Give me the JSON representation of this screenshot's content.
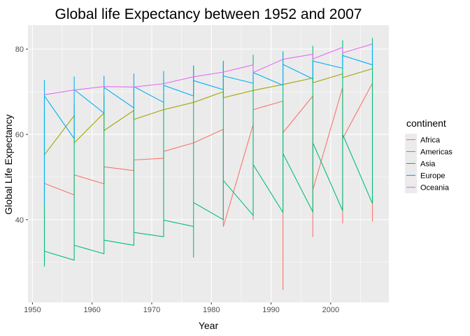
{
  "chart_data": {
    "type": "line",
    "title": "Global life Expectancy between 1952 and 2007",
    "xlabel": "Year",
    "ylabel": "Global Life Expectancy",
    "xlim": [
      1949.25,
      2009.75
    ],
    "ylim": [
      20.6,
      85.6
    ],
    "x_ticks": [
      1950,
      1960,
      1970,
      1980,
      1990,
      2000
    ],
    "y_ticks": [
      40,
      60,
      80
    ],
    "grid": true,
    "legend": {
      "title": "continent",
      "position": "right"
    },
    "series": [
      {
        "name": "Africa",
        "color": "#F8766D",
        "points": [
          [
            1952,
            48.5
          ],
          [
            1952,
            43.5
          ],
          [
            1952,
            38.0
          ],
          [
            1952,
            48.5
          ],
          [
            1957,
            45.8
          ],
          [
            1957,
            50.5
          ],
          [
            1962,
            48.4
          ],
          [
            1962,
            52.4
          ],
          [
            1967,
            51.5
          ],
          [
            1967,
            54.0
          ],
          [
            1972,
            54.4
          ],
          [
            1972,
            56.0
          ],
          [
            1977,
            58.0
          ],
          [
            1982,
            61.2
          ],
          [
            1982,
            38.4
          ],
          [
            1987,
            62.3
          ],
          [
            1987,
            40.0
          ],
          [
            1987,
            65.8
          ],
          [
            1992,
            67.8
          ],
          [
            1992,
            23.6
          ],
          [
            1992,
            60.4
          ],
          [
            1997,
            69.0
          ],
          [
            1997,
            36.0
          ],
          [
            1997,
            47.0
          ],
          [
            2002,
            71.0
          ],
          [
            2002,
            39.2
          ],
          [
            2002,
            59.0
          ],
          [
            2007,
            72.0
          ],
          [
            2007,
            39.6
          ]
        ]
      },
      {
        "name": "Americas",
        "color": "#A3A500",
        "points": [
          [
            1952,
            55.2
          ],
          [
            1952,
            68.0
          ],
          [
            1952,
            55.2
          ],
          [
            1957,
            64.4
          ],
          [
            1957,
            58.0
          ],
          [
            1962,
            65.0
          ],
          [
            1962,
            60.9
          ],
          [
            1967,
            65.6
          ],
          [
            1967,
            63.5
          ],
          [
            1972,
            65.8
          ],
          [
            1977,
            67.5
          ],
          [
            1982,
            70.0
          ],
          [
            1982,
            68.6
          ],
          [
            1987,
            70.3
          ],
          [
            1992,
            71.7
          ],
          [
            1997,
            73.2
          ],
          [
            1997,
            72.1
          ],
          [
            2002,
            74.2
          ],
          [
            2002,
            73.3
          ],
          [
            2007,
            75.4
          ]
        ]
      },
      {
        "name": "Asia",
        "color": "#00BF7D",
        "points": [
          [
            1952,
            29.0
          ],
          [
            1952,
            65.0
          ],
          [
            1952,
            32.6
          ],
          [
            1957,
            30.5
          ],
          [
            1957,
            67.0
          ],
          [
            1957,
            34.0
          ],
          [
            1962,
            32.0
          ],
          [
            1962,
            69.0
          ],
          [
            1962,
            35.2
          ],
          [
            1967,
            34.0
          ],
          [
            1967,
            71.0
          ],
          [
            1967,
            37.0
          ],
          [
            1972,
            36.0
          ],
          [
            1972,
            73.0
          ],
          [
            1972,
            39.9
          ],
          [
            1977,
            38.4
          ],
          [
            1977,
            31.2
          ],
          [
            1977,
            76.0
          ],
          [
            1977,
            44.0
          ],
          [
            1982,
            40.0
          ],
          [
            1982,
            77.0
          ],
          [
            1982,
            49.2
          ],
          [
            1987,
            41.0
          ],
          [
            1987,
            78.6
          ],
          [
            1987,
            52.9
          ],
          [
            1992,
            41.7
          ],
          [
            1992,
            79.4
          ],
          [
            1992,
            55.5
          ],
          [
            1997,
            41.8
          ],
          [
            1997,
            80.7
          ],
          [
            1997,
            58.0
          ],
          [
            2002,
            42.1
          ],
          [
            2002,
            82.0
          ],
          [
            2002,
            60.0
          ],
          [
            2007,
            43.8
          ],
          [
            2007,
            82.6
          ]
        ]
      },
      {
        "name": "Europe",
        "color": "#00B0F6",
        "points": [
          [
            1952,
            43.5
          ],
          [
            1952,
            72.7
          ],
          [
            1952,
            69.0
          ],
          [
            1957,
            59.0
          ],
          [
            1957,
            73.5
          ],
          [
            1957,
            70.5
          ],
          [
            1962,
            65.0
          ],
          [
            1962,
            73.7
          ],
          [
            1962,
            71.0
          ],
          [
            1967,
            66.2
          ],
          [
            1967,
            74.2
          ],
          [
            1967,
            71.2
          ],
          [
            1972,
            67.5
          ],
          [
            1972,
            74.8
          ],
          [
            1972,
            71.5
          ],
          [
            1977,
            69.0
          ],
          [
            1977,
            76.1
          ],
          [
            1977,
            72.6
          ],
          [
            1982,
            70.5
          ],
          [
            1982,
            77.2
          ],
          [
            1982,
            73.7
          ],
          [
            1987,
            72.0
          ],
          [
            1987,
            75.0
          ],
          [
            1987,
            74.5
          ],
          [
            1992,
            71.5
          ],
          [
            1992,
            79.4
          ],
          [
            1992,
            76.4
          ],
          [
            1997,
            73.0
          ],
          [
            1997,
            77.2
          ],
          [
            2002,
            75.5
          ],
          [
            2002,
            78.5
          ],
          [
            2007,
            76.3
          ],
          [
            2007,
            81.0
          ]
        ]
      },
      {
        "name": "Oceania",
        "color": "#E76BF3",
        "points": [
          [
            1952,
            69.3
          ],
          [
            1957,
            70.4
          ],
          [
            1962,
            71.2
          ],
          [
            1967,
            71.1
          ],
          [
            1972,
            71.9
          ],
          [
            1977,
            73.5
          ],
          [
            1982,
            74.6
          ],
          [
            1987,
            76.3
          ],
          [
            1987,
            74.5
          ],
          [
            1992,
            77.6
          ],
          [
            1997,
            78.8
          ],
          [
            1997,
            77.7
          ],
          [
            2002,
            80.4
          ],
          [
            2002,
            79.1
          ],
          [
            2007,
            81.2
          ]
        ]
      }
    ]
  }
}
